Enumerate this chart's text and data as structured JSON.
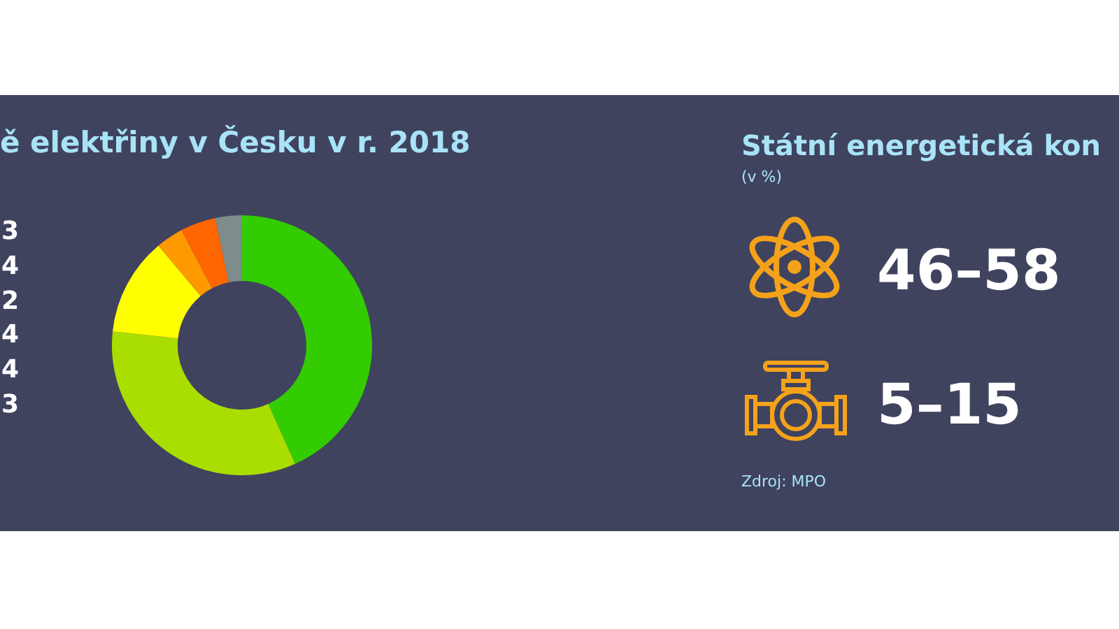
{
  "chart_data": [
    {
      "type": "donut",
      "title": "ě elektřiny v Česku v r. 2018",
      "categories": [
        null,
        null,
        null,
        null,
        null,
        null
      ],
      "values": [
        43.3,
        33.4,
        12.2,
        3.4,
        4.4,
        3.3
      ],
      "colors": [
        "#33cc00",
        "#aadd00",
        "#ffff00",
        "#ff9900",
        "#ff6600",
        "#7f8c8c"
      ],
      "annotations": [
        "3",
        "4",
        "2",
        "4",
        "4",
        "3"
      ]
    },
    {
      "type": "other",
      "title": "Státní energetická kon",
      "subtitle": "(v %)",
      "annotations": [
        "46–58",
        "5–15",
        "Zdroj: MPO"
      ]
    }
  ]
}
